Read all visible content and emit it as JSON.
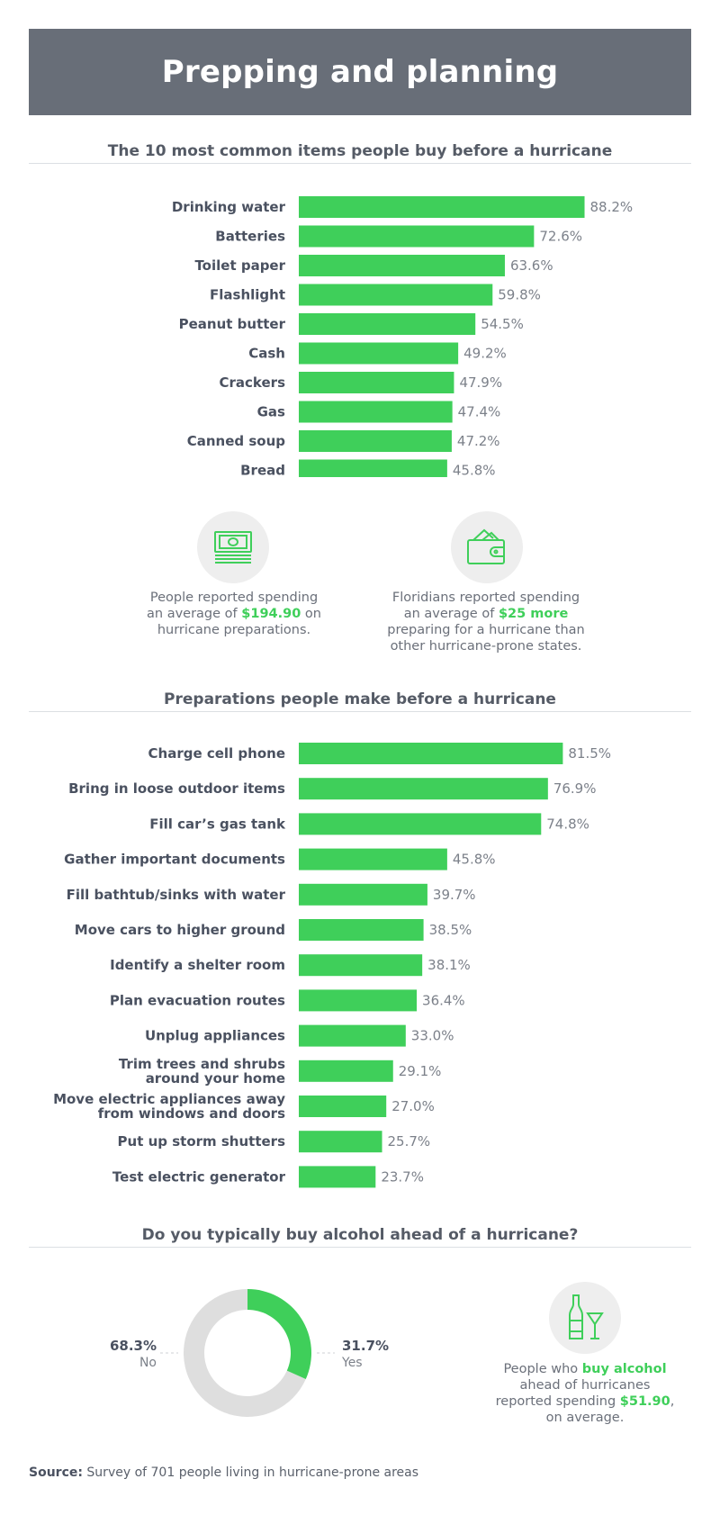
{
  "title": "Prepping and planning",
  "colors": {
    "bar": "#3fcf5a",
    "banner": "#686e78",
    "donut_rest": "#dedede"
  },
  "chart_data": [
    {
      "type": "bar",
      "orientation": "horizontal",
      "title": "The 10 most common items people buy before a hurricane",
      "categories": [
        "Drinking water",
        "Batteries",
        "Toilet paper",
        "Flashlight",
        "Peanut butter",
        "Cash",
        "Crackers",
        "Gas",
        "Canned soup",
        "Bread"
      ],
      "values": [
        88.2,
        72.6,
        63.6,
        59.8,
        54.5,
        49.2,
        47.9,
        47.4,
        47.2,
        45.8
      ],
      "value_labels": [
        "88.2%",
        "72.6%",
        "63.6%",
        "59.8%",
        "54.5%",
        "49.2%",
        "47.9%",
        "47.4%",
        "47.2%",
        "45.8%"
      ]
    },
    {
      "type": "bar",
      "orientation": "horizontal",
      "title": "Preparations people make before a hurricane",
      "categories": [
        "Charge cell phone",
        "Bring in loose outdoor items",
        "Fill car’s gas tank",
        "Gather important documents",
        "Fill bathtub/sinks with water",
        "Move cars to higher ground",
        "Identify a shelter room",
        "Plan evacuation routes",
        "Unplug appliances",
        "Trim trees and shrubs|around your home",
        "Move electric appliances away|from windows and doors",
        "Put up storm shutters",
        "Test electric generator"
      ],
      "values": [
        81.5,
        76.9,
        74.8,
        45.8,
        39.7,
        38.5,
        38.1,
        36.4,
        33.0,
        29.1,
        27.0,
        25.7,
        23.7
      ],
      "value_labels": [
        "81.5%",
        "76.9%",
        "74.8%",
        "45.8%",
        "39.7%",
        "38.5%",
        "38.1%",
        "36.4%",
        "33.0%",
        "29.1%",
        "27.0%",
        "25.7%",
        "23.7%"
      ]
    },
    {
      "type": "pie",
      "style": "donut",
      "title": "Do you typically buy alcohol ahead of a hurricane?",
      "categories": [
        "Yes",
        "No"
      ],
      "values": [
        31.7,
        68.3
      ],
      "value_labels": [
        "31.7%",
        "68.3%"
      ]
    }
  ],
  "stats": {
    "spending": {
      "icon": "money-stack-icon",
      "pre": "People reported spending",
      "mid": "an average of",
      "highlight": "$194.90",
      "after": "on",
      "post": "hurricane preparations."
    },
    "florida": {
      "icon": "wallet-icon",
      "pre": "Floridians reported spending",
      "mid": "an average of",
      "highlight": "$25 more",
      "post1": "preparing for a hurricane than",
      "post2": "other hurricane-prone states."
    },
    "alcohol": {
      "icon": "wine-bottle-glass-icon",
      "pre": "People who",
      "highlight": "buy alcohol",
      "line2": "ahead of hurricanes",
      "line3_pre": "reported spending",
      "highlight2": "$51.90",
      "line3_post": ",",
      "line4": "on average."
    }
  },
  "source": {
    "label": "Source:",
    "text": "Survey of 701 people living in hurricane-prone areas"
  }
}
